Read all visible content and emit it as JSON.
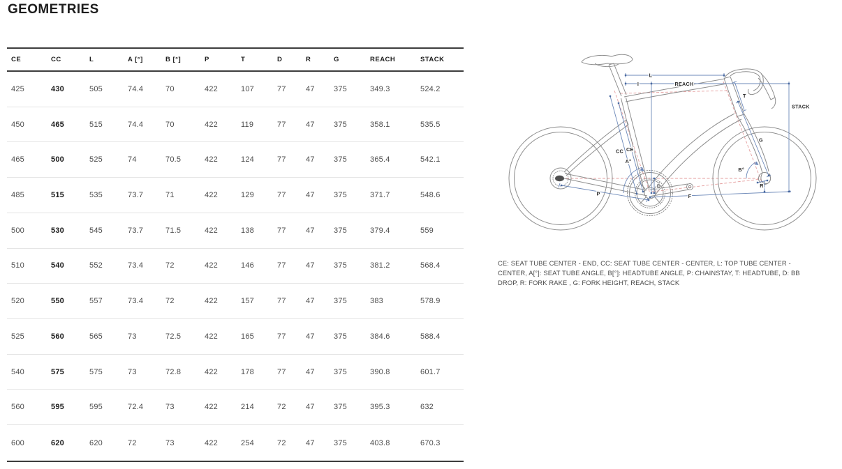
{
  "page": {
    "title": "GEOMETRIES"
  },
  "table": {
    "columns": [
      "CE",
      "CC",
      "L",
      "A [°]",
      "B [°]",
      "P",
      "T",
      "D",
      "R",
      "G",
      "REACH",
      "STACK"
    ],
    "bold_column_index": 1,
    "rows": [
      [
        "425",
        "430",
        "505",
        "74.4",
        "70",
        "422",
        "107",
        "77",
        "47",
        "375",
        "349.3",
        "524.2"
      ],
      [
        "450",
        "465",
        "515",
        "74.4",
        "70",
        "422",
        "119",
        "77",
        "47",
        "375",
        "358.1",
        "535.5"
      ],
      [
        "465",
        "500",
        "525",
        "74",
        "70.5",
        "422",
        "124",
        "77",
        "47",
        "375",
        "365.4",
        "542.1"
      ],
      [
        "485",
        "515",
        "535",
        "73.7",
        "71",
        "422",
        "129",
        "77",
        "47",
        "375",
        "371.7",
        "548.6"
      ],
      [
        "500",
        "530",
        "545",
        "73.7",
        "71.5",
        "422",
        "138",
        "77",
        "47",
        "375",
        "379.4",
        "559"
      ],
      [
        "510",
        "540",
        "552",
        "73.4",
        "72",
        "422",
        "146",
        "77",
        "47",
        "375",
        "381.2",
        "568.4"
      ],
      [
        "520",
        "550",
        "557",
        "73.4",
        "72",
        "422",
        "157",
        "77",
        "47",
        "375",
        "383",
        "578.9"
      ],
      [
        "525",
        "560",
        "565",
        "73",
        "72.5",
        "422",
        "165",
        "77",
        "47",
        "375",
        "384.6",
        "588.4"
      ],
      [
        "540",
        "575",
        "575",
        "73",
        "72.8",
        "422",
        "178",
        "77",
        "47",
        "375",
        "390.8",
        "601.7"
      ],
      [
        "560",
        "595",
        "595",
        "72.4",
        "73",
        "422",
        "214",
        "72",
        "47",
        "375",
        "395.3",
        "632"
      ],
      [
        "600",
        "620",
        "620",
        "72",
        "73",
        "422",
        "254",
        "72",
        "47",
        "375",
        "403.8",
        "670.3"
      ]
    ]
  },
  "diagram": {
    "labels": {
      "l": "L",
      "i": "I",
      "reach": "REACH",
      "stack": "STACK",
      "t": "T",
      "g": "G",
      "cc": "CC",
      "ce": "CE",
      "a": "A°",
      "b": "B°",
      "d": "D",
      "p": "P",
      "f": "F",
      "r": "R"
    },
    "colors": {
      "bike_outline": "#8e8e8e",
      "dimension_blue": "#6c88b8",
      "dashed_red": "#e59f9f",
      "label_text": "#2b2b2b"
    }
  },
  "legend": {
    "text": "CE: SEAT TUBE CENTER - END, CC: SEAT TUBE CENTER - CENTER, L: TOP TUBE CENTER - CENTER, A[°]: SEAT TUBE ANGLE, B[°]: HEADTUBE ANGLE, P: CHAINSTAY, T: HEADTUBE, D: BB DROP, R: FORK RAKE , G: FORK HEIGHT, REACH, STACK"
  }
}
